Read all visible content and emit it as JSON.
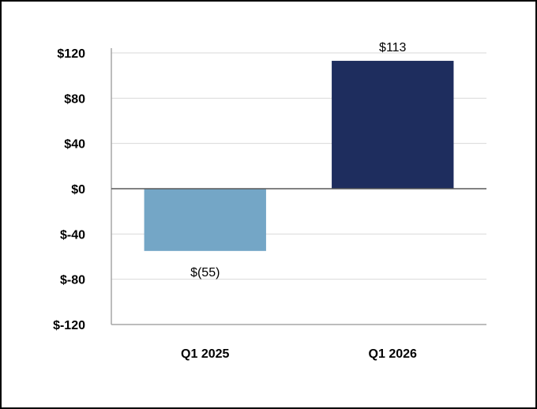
{
  "chart_data": {
    "type": "bar",
    "categories": [
      "Q1 2025",
      "Q1 2026"
    ],
    "values": [
      -55,
      113
    ],
    "data_labels": [
      "$(55)",
      "$113"
    ],
    "bar_colors": [
      "#74a6c6",
      "#1e2d5e"
    ],
    "yticks": [
      120,
      80,
      40,
      0,
      -40,
      -80,
      -120
    ],
    "ytick_labels": [
      "$120",
      "$80",
      "$40",
      "$0",
      "$-40",
      "$-80",
      "$-120"
    ],
    "ylim": [
      -120,
      120
    ],
    "grid": true,
    "title": "",
    "xlabel": "",
    "ylabel": ""
  }
}
